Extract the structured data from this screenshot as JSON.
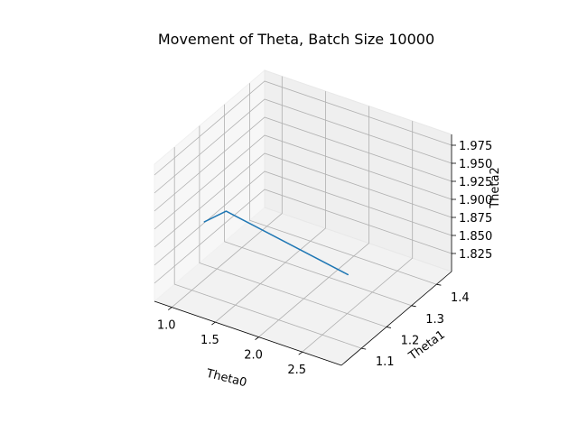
{
  "chart_data": {
    "type": "line3d",
    "title": "Movement of Theta, Batch Size 10000",
    "xlabel": "Theta0",
    "ylabel": "Theta1",
    "zlabel": "Theta2",
    "xlim": [
      0.8,
      2.95
    ],
    "ylim": [
      1.02,
      1.46
    ],
    "zlim": [
      1.8,
      1.99
    ],
    "xticks": [
      "1.0",
      "1.5",
      "2.0",
      "2.5"
    ],
    "yticks": [
      "1.1",
      "1.2",
      "1.3",
      "1.4"
    ],
    "zticks": [
      "1.825",
      "1.850",
      "1.875",
      "1.900",
      "1.925",
      "1.950",
      "1.975"
    ],
    "grid": true,
    "pane_color": "#f2f2f2",
    "grid_color": "#b0b0b0",
    "series": [
      {
        "color": "#1f77b4",
        "x": [
          1.0,
          1.25,
          2.65
        ],
        "y": [
          1.15,
          1.15,
          1.15
        ],
        "z": [
          1.88,
          1.905,
          1.875
        ]
      }
    ]
  }
}
